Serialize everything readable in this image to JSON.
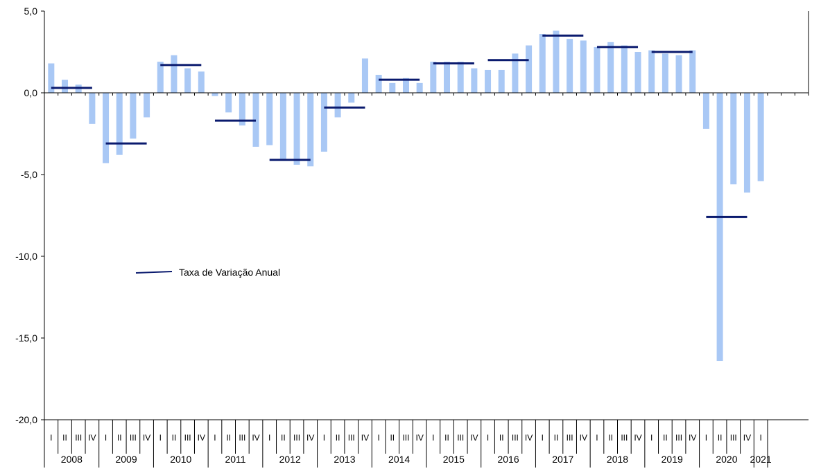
{
  "chart_data": {
    "type": "bar",
    "ylim": [
      -20,
      5
    ],
    "yticks": [
      5,
      0,
      -5,
      -10,
      -15,
      -20
    ],
    "ytick_labels": [
      "5,0",
      "0,0",
      "-5,0",
      "-10,0",
      "-15,0",
      "-20,0"
    ],
    "grid": false,
    "quarter_labels": [
      "I",
      "II",
      "III",
      "IV"
    ],
    "years": [
      "2008",
      "2009",
      "2010",
      "2011",
      "2012",
      "2013",
      "2014",
      "2015",
      "2016",
      "2017",
      "2018",
      "2019",
      "2020",
      "2021"
    ],
    "series": [
      {
        "type": "bar",
        "color": "#a9c8f5",
        "values": [
          1.8,
          0.8,
          0.5,
          -1.9,
          -4.3,
          -3.8,
          -2.8,
          -1.5,
          1.9,
          2.3,
          1.5,
          1.3,
          -0.2,
          -1.2,
          -2.0,
          -3.3,
          -3.2,
          -4.1,
          -4.4,
          -4.5,
          -3.6,
          -1.5,
          -0.6,
          2.1,
          1.1,
          0.6,
          0.9,
          0.6,
          1.9,
          1.9,
          1.9,
          1.5,
          1.4,
          1.4,
          2.4,
          2.9,
          3.6,
          3.8,
          3.3,
          3.2,
          2.8,
          3.1,
          2.9,
          2.5,
          2.6,
          2.4,
          2.3,
          2.6,
          -2.2,
          -16.4,
          -5.6,
          -6.1,
          -5.4
        ]
      },
      {
        "name": "Taxa de Variação Anual",
        "type": "line-segment",
        "color": "#0a1a6e",
        "values": [
          0.3,
          -3.1,
          1.7,
          -1.7,
          -4.1,
          -0.9,
          0.8,
          1.8,
          2.0,
          3.5,
          2.8,
          2.5,
          -7.6
        ]
      }
    ],
    "legend": {
      "label": "Taxa de Variação Anual",
      "placement": "left-middle"
    }
  }
}
